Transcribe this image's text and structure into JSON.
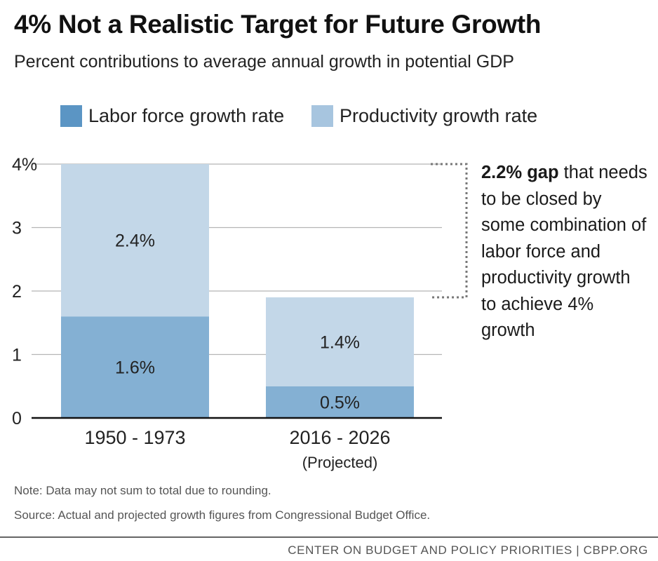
{
  "chart_data": {
    "type": "bar",
    "stacked": true,
    "title": "4% Not a Realistic Target for Future Growth",
    "subtitle": "Percent contributions to average annual growth in potential GDP",
    "categories": [
      "1950 - 1973",
      "2016 - 2026"
    ],
    "category_sublabels": [
      "",
      "(Projected)"
    ],
    "series": [
      {
        "name": "Labor force growth rate",
        "color": "#84b0d3",
        "legend_color": "#5b95c4",
        "values": [
          1.6,
          0.5
        ],
        "labels": [
          "1.6%",
          "0.5%"
        ]
      },
      {
        "name": "Productivity growth rate",
        "color": "#c3d7e8",
        "legend_color": "#a7c5df",
        "values": [
          2.4,
          1.4
        ],
        "labels": [
          "2.4%",
          "1.4%"
        ]
      }
    ],
    "yticks": [
      0,
      1,
      2,
      3,
      4
    ],
    "ytick_labels": [
      "0",
      "1",
      "2",
      "3",
      "4%"
    ],
    "ylim": [
      0,
      4
    ],
    "xlabel": "",
    "ylabel": "",
    "grid": true,
    "legend_position": "top"
  },
  "annotation": {
    "bold": "2.2% gap",
    "text": " that needs to be closed by some combination of labor force and productivity growth to achieve 4% growth"
  },
  "notes": {
    "note": "Note: Data may not sum to total due to rounding.",
    "source": "Source: Actual and projected growth figures from Congressional Budget Office."
  },
  "footer": "CENTER ON BUDGET AND POLICY PRIORITIES | CBPP.ORG",
  "colors": {
    "gridline": "#b5b5b5",
    "axis": "#111111",
    "bracket": "#777777"
  }
}
